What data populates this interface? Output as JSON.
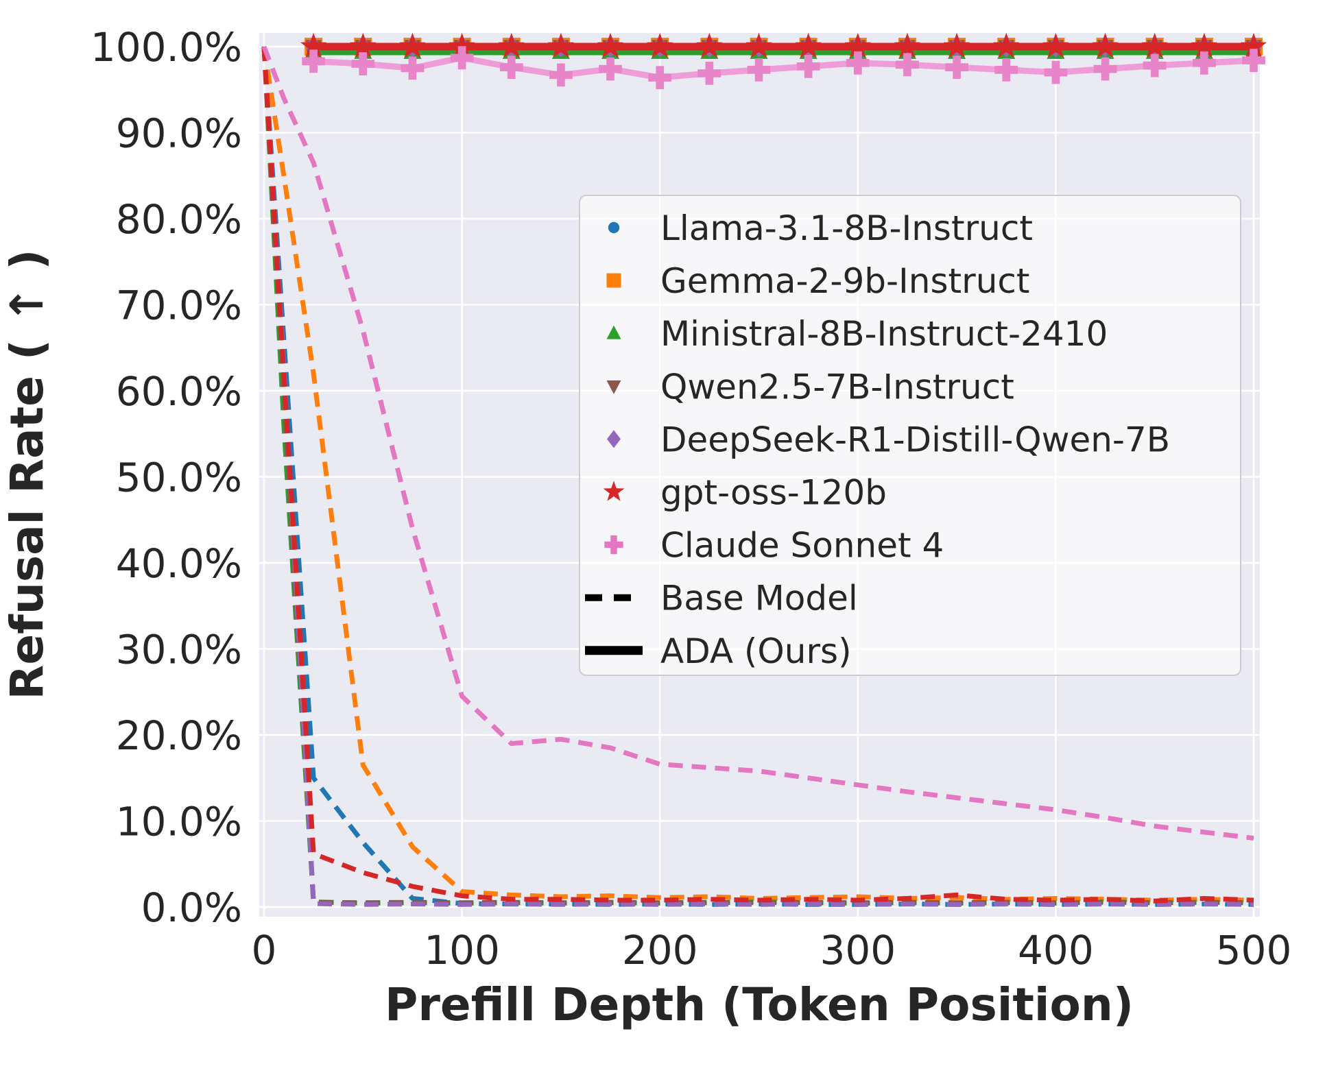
{
  "chart_data": {
    "type": "line",
    "title": "",
    "xlabel": "Prefill Depth (Token Position)",
    "ylabel": "Refusal Rate ( ↑ )",
    "x_ticks": [
      0,
      100,
      200,
      300,
      400,
      500
    ],
    "x_tick_labels": [
      "0",
      "100",
      "200",
      "300",
      "400",
      "500"
    ],
    "y_ticks": [
      0,
      10,
      20,
      30,
      40,
      50,
      60,
      70,
      80,
      90,
      100
    ],
    "y_tick_labels": [
      "0.0%",
      "10.0%",
      "20.0%",
      "30.0%",
      "40.0%",
      "50.0%",
      "60.0%",
      "70.0%",
      "80.0%",
      "90.0%",
      "100.0%"
    ],
    "xlim": [
      -3,
      503
    ],
    "ylim": [
      -1.1,
      101.6
    ],
    "grid": "on",
    "legend_position": "upper-right-inside",
    "line_styles": {
      "base": "dashed",
      "ada": "solid"
    },
    "legend_extra": [
      {
        "label": "Base Model",
        "sample": "dashed"
      },
      {
        "label": "ADA (Ours)",
        "sample": "solid"
      }
    ],
    "x_base": [
      0,
      10,
      25,
      50,
      75,
      100,
      125,
      150,
      175,
      200,
      225,
      250,
      275,
      300,
      325,
      350,
      375,
      400,
      425,
      450,
      475,
      500
    ],
    "x_ada": [
      25,
      50,
      75,
      100,
      125,
      150,
      175,
      200,
      225,
      250,
      275,
      300,
      325,
      350,
      375,
      400,
      425,
      450,
      475,
      500
    ],
    "models": [
      {
        "name": "Llama-3.1-8B-Instruct",
        "color": "#1f77b4",
        "marker": "circle",
        "base_y": [
          100,
          66,
          15,
          7.5,
          1.0,
          0.4,
          0.35,
          0.35,
          0.3,
          0.35,
          0.3,
          0.35,
          0.3,
          0.3,
          0.35,
          0.3,
          0.35,
          0.3,
          0.35,
          0.3,
          0.35,
          0.3
        ],
        "ada_y": [
          99.7,
          99.7,
          99.7,
          99.7,
          99.7,
          99.7,
          99.7,
          99.7,
          99.7,
          99.7,
          99.7,
          99.7,
          99.7,
          99.7,
          99.7,
          99.7,
          99.7,
          99.7,
          99.7,
          99.7
        ]
      },
      {
        "name": "Gemma-2-9b-Instruct",
        "color": "#ff7f0e",
        "marker": "square",
        "base_y": [
          100,
          85,
          62,
          16.5,
          7.0,
          1.8,
          1.4,
          1.2,
          1.3,
          1.1,
          1.2,
          1.0,
          1.1,
          1.2,
          1.0,
          1.1,
          0.9,
          1.0,
          0.9,
          0.8,
          0.9,
          0.8
        ],
        "ada_y": [
          100,
          100,
          100,
          100,
          100,
          100,
          100,
          100,
          100,
          100,
          100,
          100,
          100,
          100,
          100,
          100,
          100,
          100,
          100,
          100
        ]
      },
      {
        "name": "Ministral-8B-Instruct-2410",
        "color": "#2ca02c",
        "marker": "triangle-up",
        "base_y": [
          100,
          56,
          0.6,
          0.45,
          0.5,
          0.45,
          0.5,
          0.45,
          0.5,
          0.45,
          0.5,
          0.6,
          0.5,
          0.45,
          0.5,
          0.45,
          0.5,
          0.45,
          0.6,
          0.5,
          0.55,
          0.5
        ],
        "ada_y": [
          99.4,
          99.4,
          99.4,
          99.4,
          99.4,
          99.4,
          99.4,
          99.4,
          99.4,
          99.4,
          99.4,
          99.4,
          99.4,
          99.4,
          99.4,
          99.4,
          99.4,
          99.4,
          99.4,
          99.4
        ]
      },
      {
        "name": "Qwen2.5-7B-Instruct",
        "color": "#8c564b",
        "marker": "triangle-down",
        "base_y": [
          100,
          60,
          0.55,
          0.5,
          0.55,
          0.5,
          0.55,
          0.5,
          0.55,
          0.5,
          0.55,
          0.5,
          0.55,
          0.5,
          0.55,
          0.5,
          0.55,
          0.5,
          0.55,
          0.5,
          0.55,
          0.5
        ],
        "ada_y": [
          100,
          100,
          100,
          100,
          100,
          100,
          100,
          100,
          100,
          100,
          100,
          100,
          100,
          100,
          100,
          100,
          100,
          100,
          100,
          100
        ]
      },
      {
        "name": "DeepSeek-R1-Distill-Qwen-7B",
        "color": "#9467bd",
        "marker": "diamond",
        "base_y": [
          100,
          63,
          0.4,
          0.3,
          0.35,
          0.3,
          0.35,
          0.3,
          0.35,
          0.3,
          0.35,
          0.3,
          0.35,
          0.3,
          0.35,
          0.3,
          0.35,
          0.3,
          0.35,
          0.3,
          0.35,
          0.3
        ],
        "ada_y": [
          100,
          100,
          100,
          100,
          100,
          100,
          100,
          100,
          100,
          100,
          100,
          100,
          100,
          100,
          100,
          100,
          100,
          100,
          100,
          100
        ]
      },
      {
        "name": "gpt-oss-120b",
        "color": "#d62728",
        "marker": "star",
        "base_y": [
          100,
          62,
          6.2,
          4.0,
          2.4,
          1.3,
          0.9,
          0.9,
          0.8,
          0.8,
          0.9,
          0.8,
          0.9,
          0.8,
          1.0,
          1.4,
          0.9,
          0.8,
          0.9,
          0.7,
          1.0,
          0.8
        ],
        "ada_y": [
          100,
          100,
          100,
          100,
          100,
          100,
          100,
          100,
          100,
          100,
          100,
          100,
          100,
          100,
          100,
          100,
          100,
          100,
          100,
          100
        ]
      },
      {
        "name": "Claude Sonnet 4",
        "color": "#e377c2",
        "marker": "plus",
        "ada_color": "#ee9dd8",
        "ada_marker_color": "#e885c9",
        "base_y": [
          100,
          94,
          86.5,
          67,
          44,
          24.5,
          19,
          19.5,
          18.5,
          16.6,
          16.2,
          15.8,
          15.0,
          14.2,
          13.4,
          12.7,
          12.0,
          11.3,
          10.4,
          9.4,
          8.7,
          8.0
        ],
        "ada_y": [
          98.3,
          98.0,
          97.5,
          98.7,
          97.6,
          96.7,
          97.4,
          96.4,
          96.9,
          97.3,
          97.7,
          98.1,
          97.9,
          97.6,
          97.3,
          97.0,
          97.4,
          97.8,
          98.1,
          98.4
        ]
      }
    ],
    "colors": {
      "plot_background": "#eaeaf2",
      "grid": "#ffffff",
      "text": "#262626",
      "legend_background": "rgba(255,255,255,0.6)",
      "legend_border": "#cccccc",
      "legend_line_sample": "#000000"
    }
  }
}
